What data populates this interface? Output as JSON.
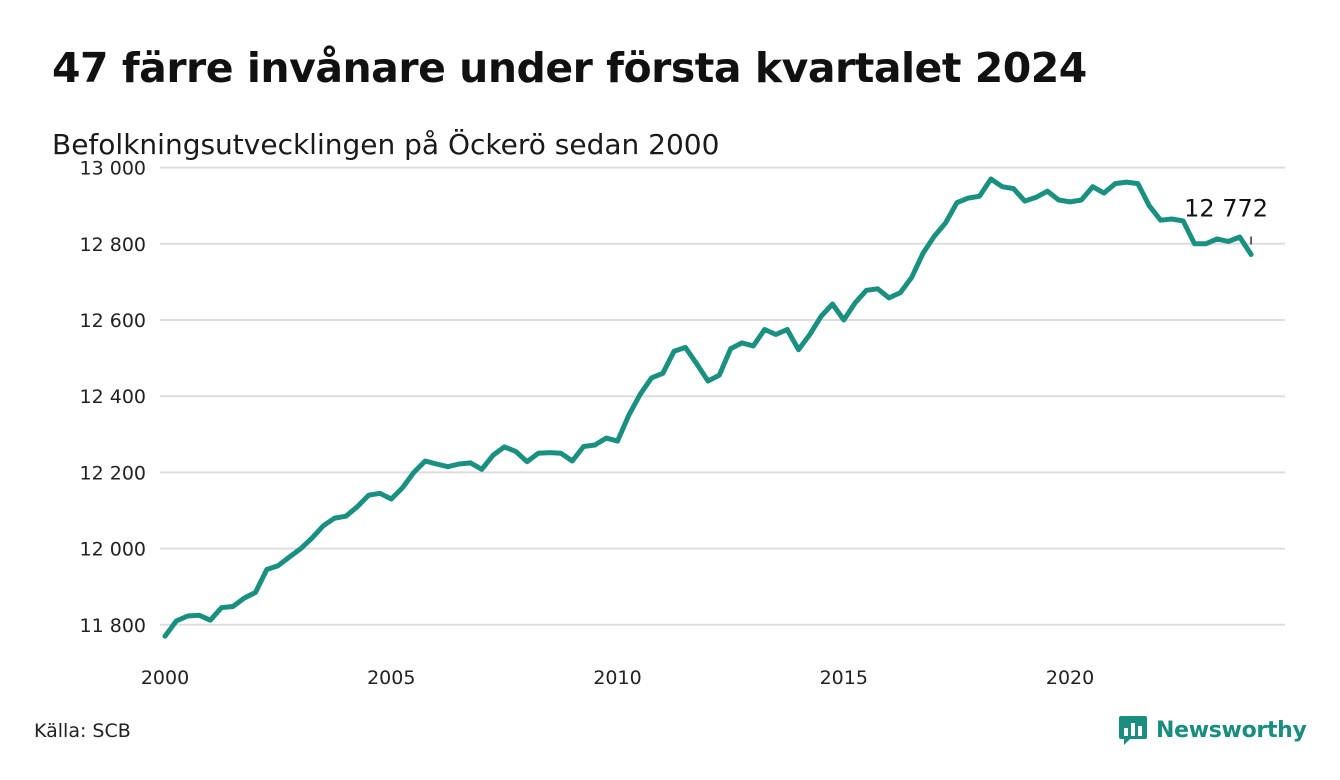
{
  "header": {
    "title": "47 färre invånare under första kvartalet 2024",
    "subtitle": "Befolkningsutvecklingen på Öckerö sedan 2000"
  },
  "footer": {
    "source": "Källa: SCB",
    "brand": "Newsworthy"
  },
  "colors": {
    "line": "#1a9080",
    "grid": "#dddddd",
    "brand": "#1a8e7e"
  },
  "chart_data": {
    "type": "line",
    "title": "47 färre invånare under första kvartalet 2024",
    "subtitle": "Befolkningsutvecklingen på Öckerö sedan 2000",
    "xlabel": "",
    "ylabel": "",
    "xlim": [
      2000,
      2024.75
    ],
    "ylim": [
      11760,
      13020
    ],
    "grid": true,
    "x_ticks": [
      {
        "value": 2000,
        "label": "2000"
      },
      {
        "value": 2005,
        "label": "2005"
      },
      {
        "value": 2010,
        "label": "2010"
      },
      {
        "value": 2015,
        "label": "2015"
      },
      {
        "value": 2020,
        "label": "2020"
      }
    ],
    "y_ticks": [
      {
        "value": 11800,
        "label": "11 800"
      },
      {
        "value": 12000,
        "label": "12 000"
      },
      {
        "value": 12200,
        "label": "12 200"
      },
      {
        "value": 12400,
        "label": "12 400"
      },
      {
        "value": 12600,
        "label": "12 600"
      },
      {
        "value": 12800,
        "label": "12 800"
      },
      {
        "value": 13000,
        "label": "13 000"
      }
    ],
    "annotation": {
      "x": 2024.0,
      "y": 12772,
      "label": "12 772"
    },
    "series": [
      {
        "x": [
          2000.0,
          2000.25,
          2000.5,
          2000.75,
          2001.0,
          2001.25,
          2001.5,
          2001.75,
          2002.0,
          2002.25,
          2002.5,
          2002.75,
          2003.0,
          2003.25,
          2003.5,
          2003.75,
          2004.0,
          2004.25,
          2004.5,
          2004.75,
          2005.0,
          2005.25,
          2005.5,
          2005.75,
          2006.0,
          2006.25,
          2006.5,
          2006.75,
          2007.0,
          2007.25,
          2007.5,
          2007.75,
          2008.0,
          2008.25,
          2008.5,
          2008.75,
          2009.0,
          2009.25,
          2009.5,
          2009.75,
          2010.0,
          2010.25,
          2010.5,
          2010.75,
          2011.0,
          2011.25,
          2011.5,
          2011.75,
          2012.0,
          2012.25,
          2012.5,
          2012.75,
          2013.0,
          2013.25,
          2013.5,
          2013.75,
          2014.0,
          2014.25,
          2014.5,
          2014.75,
          2015.0,
          2015.25,
          2015.5,
          2015.75,
          2016.0,
          2016.25,
          2016.5,
          2016.75,
          2017.0,
          2017.25,
          2017.5,
          2017.75,
          2018.0,
          2018.25,
          2018.5,
          2018.75,
          2019.0,
          2019.25,
          2019.5,
          2019.75,
          2020.0,
          2020.25,
          2020.5,
          2020.75,
          2021.0,
          2021.25,
          2021.5,
          2021.75,
          2022.0,
          2022.25,
          2022.5,
          2022.75,
          2023.0,
          2023.25,
          2023.5,
          2023.75,
          2024.0
        ],
        "values": [
          11770,
          11810,
          11823,
          11825,
          11812,
          11845,
          11848,
          11870,
          11885,
          11945,
          11955,
          11978,
          12000,
          12028,
          12060,
          12080,
          12085,
          12110,
          12140,
          12145,
          12130,
          12160,
          12200,
          12230,
          12222,
          12215,
          12222,
          12225,
          12208,
          12245,
          12267,
          12255,
          12228,
          12250,
          12252,
          12250,
          12230,
          12268,
          12272,
          12290,
          12282,
          12350,
          12405,
          12448,
          12460,
          12518,
          12528,
          12485,
          12440,
          12455,
          12525,
          12540,
          12532,
          12575,
          12562,
          12575,
          12522,
          12562,
          12610,
          12642,
          12600,
          12645,
          12678,
          12682,
          12658,
          12672,
          12712,
          12775,
          12820,
          12855,
          12908,
          12920,
          12925,
          12970,
          12950,
          12945,
          12912,
          12922,
          12938,
          12915,
          12910,
          12915,
          12950,
          12933,
          12958,
          12962,
          12958,
          12900,
          12862,
          12865,
          12860,
          12800,
          12800,
          12813,
          12806,
          12818,
          12772
        ]
      }
    ]
  }
}
